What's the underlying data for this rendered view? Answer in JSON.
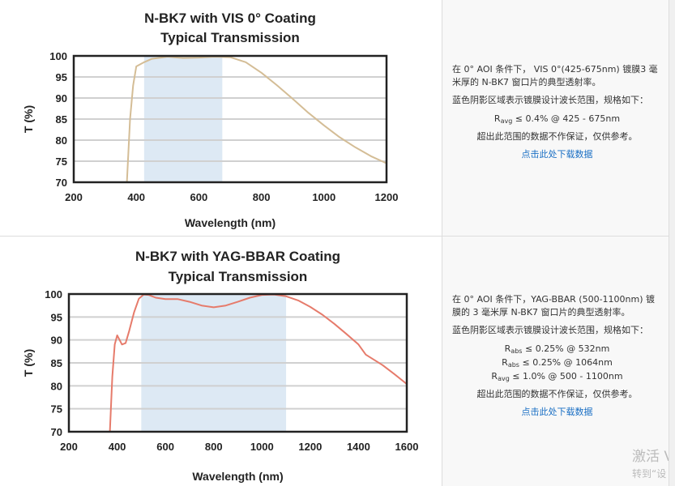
{
  "chart_data": [
    {
      "type": "line",
      "title": [
        "N-BK7 with VIS 0° Coating",
        "Typical Transmission"
      ],
      "xlabel": "Wavelength (nm)",
      "ylabel": "T (%)",
      "xlim": [
        200,
        1200
      ],
      "ylim": [
        70,
        100
      ],
      "xticks": [
        200,
        400,
        600,
        800,
        1000,
        1200
      ],
      "yticks": [
        70,
        75,
        80,
        85,
        90,
        95,
        100
      ],
      "grid": "horizontal",
      "shaded_band": [
        425,
        675
      ],
      "colors": {
        "line": "#d4bd96",
        "band": "#dde9f4"
      },
      "series": [
        {
          "x": [
            370,
            380,
            390,
            400,
            425,
            450,
            500,
            550,
            600,
            650,
            700,
            750,
            800,
            850,
            900,
            950,
            1000,
            1050,
            1100,
            1150,
            1200
          ],
          "y": [
            70,
            85,
            93,
            97.5,
            98.5,
            99.3,
            99.8,
            99.5,
            99.6,
            99.8,
            99.7,
            98.5,
            96,
            93,
            89.8,
            86.5,
            83.5,
            80.7,
            78.3,
            76.2,
            74.5
          ]
        }
      ]
    },
    {
      "type": "line",
      "title": [
        "N-BK7 with YAG-BBAR Coating",
        "Typical Transmission"
      ],
      "xlabel": "Wavelength (nm)",
      "ylabel": "T (%)",
      "xlim": [
        200,
        1600
      ],
      "ylim": [
        70,
        100
      ],
      "xticks": [
        200,
        400,
        600,
        800,
        1000,
        1200,
        1400,
        1600
      ],
      "yticks": [
        70,
        75,
        80,
        85,
        90,
        95,
        100
      ],
      "grid": "horizontal",
      "shaded_band": [
        500,
        1100
      ],
      "colors": {
        "line": "#e67b6b",
        "band": "#dde9f4"
      },
      "series": [
        {
          "x": [
            370,
            380,
            390,
            400,
            410,
            420,
            435,
            450,
            470,
            490,
            510,
            530,
            560,
            600,
            650,
            700,
            750,
            800,
            850,
            900,
            950,
            1000,
            1050,
            1100,
            1150,
            1200,
            1250,
            1300,
            1350,
            1400,
            1430,
            1500,
            1550,
            1600
          ],
          "y": [
            70,
            82,
            89,
            91,
            90,
            89,
            89.3,
            92,
            96,
            99,
            99.9,
            99.8,
            99.2,
            98.9,
            98.9,
            98.3,
            97.5,
            97.1,
            97.5,
            98.3,
            99.2,
            99.8,
            99.9,
            99.5,
            98.6,
            97.2,
            95.5,
            93.5,
            91.3,
            89,
            86.8,
            84.5,
            82.5,
            80.4
          ]
        }
      ]
    }
  ],
  "panel1": {
    "desc": "在 0° AOI 条件下， VIS 0°(425-675nm) 镀膜3 毫米厚的 N-BK7 窗口片的典型透射率。",
    "band_note": "蓝色阴影区域表示镀膜设计波长范围，规格如下：",
    "specs": [
      {
        "r": "R",
        "sub": "avg",
        "text": " ≤ 0.4% @ 425 - 675nm"
      }
    ],
    "disclaimer": "超出此范围的数据不作保证，仅供参考。",
    "download": "点击此处下载数据"
  },
  "panel2": {
    "desc": "在 0° AOI 条件下，YAG-BBAR (500-1100nm) 镀膜的 3 毫米厚 N-BK7 窗口片的典型透射率。",
    "band_note": "蓝色阴影区域表示镀膜设计波长范围，规格如下：",
    "specs": [
      {
        "r": "R",
        "sub": "abs",
        "text": " ≤ 0.25% @ 532nm"
      },
      {
        "r": "R",
        "sub": "abs",
        "text": " ≤ 0.25% @ 1064nm"
      },
      {
        "r": "R",
        "sub": "avg",
        "text": " ≤ 1.0% @ 500 - 1100nm"
      }
    ],
    "disclaimer": "超出此范围的数据不作保证，仅供参考。",
    "download": "点击此处下载数据"
  },
  "watermark": {
    "line1": "激活 V",
    "line2": "转到“设"
  }
}
